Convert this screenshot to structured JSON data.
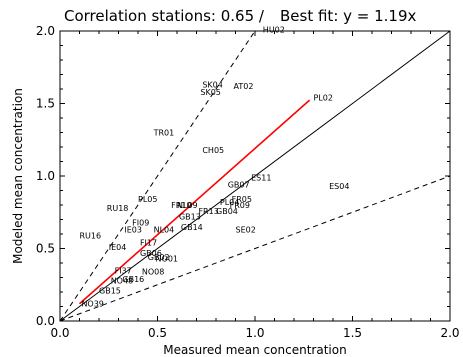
{
  "chart_data": {
    "type": "scatter",
    "title_left": "Correlation stations: 0.65 /",
    "title_right": "Best fit: y =    1.19x",
    "xlabel": "Measured mean concentration",
    "ylabel": "Modeled mean concentration",
    "xlim": [
      0,
      2
    ],
    "ylim": [
      0,
      2
    ],
    "xticks": [
      "0.0",
      "0.5",
      "1.0",
      "1.5",
      "2.0"
    ],
    "yticks": [
      "0.0",
      "0.5",
      "1.0",
      "1.5",
      "2.0"
    ],
    "grid": false,
    "reference_lines": {
      "one_to_one": 1,
      "factor_of_two_upper": 2,
      "factor_of_two_lower": 0.5
    },
    "best_fit": {
      "slope": 1.19,
      "x_range": [
        0.1,
        1.28
      ],
      "color": "#ff0000"
    },
    "points": [
      {
        "label": "HU02",
        "x": 1.04,
        "y": 2.01
      },
      {
        "label": "AT02",
        "x": 0.89,
        "y": 1.62
      },
      {
        "label": "SK04",
        "x": 0.73,
        "y": 1.63
      },
      {
        "label": "SK05",
        "x": 0.72,
        "y": 1.58
      },
      {
        "label": "PL02",
        "x": 1.3,
        "y": 1.54
      },
      {
        "label": "TR01",
        "x": 0.48,
        "y": 1.3
      },
      {
        "label": "CH05",
        "x": 0.73,
        "y": 1.18
      },
      {
        "label": "GB07",
        "x": 0.86,
        "y": 0.94
      },
      {
        "label": "ES04",
        "x": 1.38,
        "y": 0.93
      },
      {
        "label": "ES11",
        "x": 0.98,
        "y": 0.99
      },
      {
        "label": "FR05",
        "x": 0.88,
        "y": 0.84
      },
      {
        "label": "PL04",
        "x": 0.82,
        "y": 0.82
      },
      {
        "label": "FR09",
        "x": 0.87,
        "y": 0.8
      },
      {
        "label": "PL05",
        "x": 0.4,
        "y": 0.84
      },
      {
        "label": "FR10",
        "x": 0.57,
        "y": 0.8
      },
      {
        "label": "NL09",
        "x": 0.6,
        "y": 0.8
      },
      {
        "label": "RU18",
        "x": 0.24,
        "y": 0.78
      },
      {
        "label": "FR13",
        "x": 0.71,
        "y": 0.76
      },
      {
        "label": "GB04",
        "x": 0.8,
        "y": 0.76
      },
      {
        "label": "GB13",
        "x": 0.61,
        "y": 0.72
      },
      {
        "label": "FI09",
        "x": 0.37,
        "y": 0.68
      },
      {
        "label": "IE03",
        "x": 0.33,
        "y": 0.63
      },
      {
        "label": "NL04",
        "x": 0.48,
        "y": 0.63
      },
      {
        "label": "GB14",
        "x": 0.62,
        "y": 0.65
      },
      {
        "label": "SE02",
        "x": 0.9,
        "y": 0.63
      },
      {
        "label": "RU16",
        "x": 0.1,
        "y": 0.59
      },
      {
        "label": "FI17",
        "x": 0.41,
        "y": 0.54
      },
      {
        "label": "IE04",
        "x": 0.25,
        "y": 0.51
      },
      {
        "label": "GB06",
        "x": 0.41,
        "y": 0.47
      },
      {
        "label": "GB02",
        "x": 0.45,
        "y": 0.44
      },
      {
        "label": "NO01",
        "x": 0.49,
        "y": 0.43
      },
      {
        "label": "NO08",
        "x": 0.42,
        "y": 0.34
      },
      {
        "label": "FI37",
        "x": 0.28,
        "y": 0.35
      },
      {
        "label": "GB16",
        "x": 0.32,
        "y": 0.29
      },
      {
        "label": "NO48",
        "x": 0.26,
        "y": 0.28
      },
      {
        "label": "GB15",
        "x": 0.2,
        "y": 0.21
      },
      {
        "label": "NO39",
        "x": 0.11,
        "y": 0.12
      }
    ]
  }
}
